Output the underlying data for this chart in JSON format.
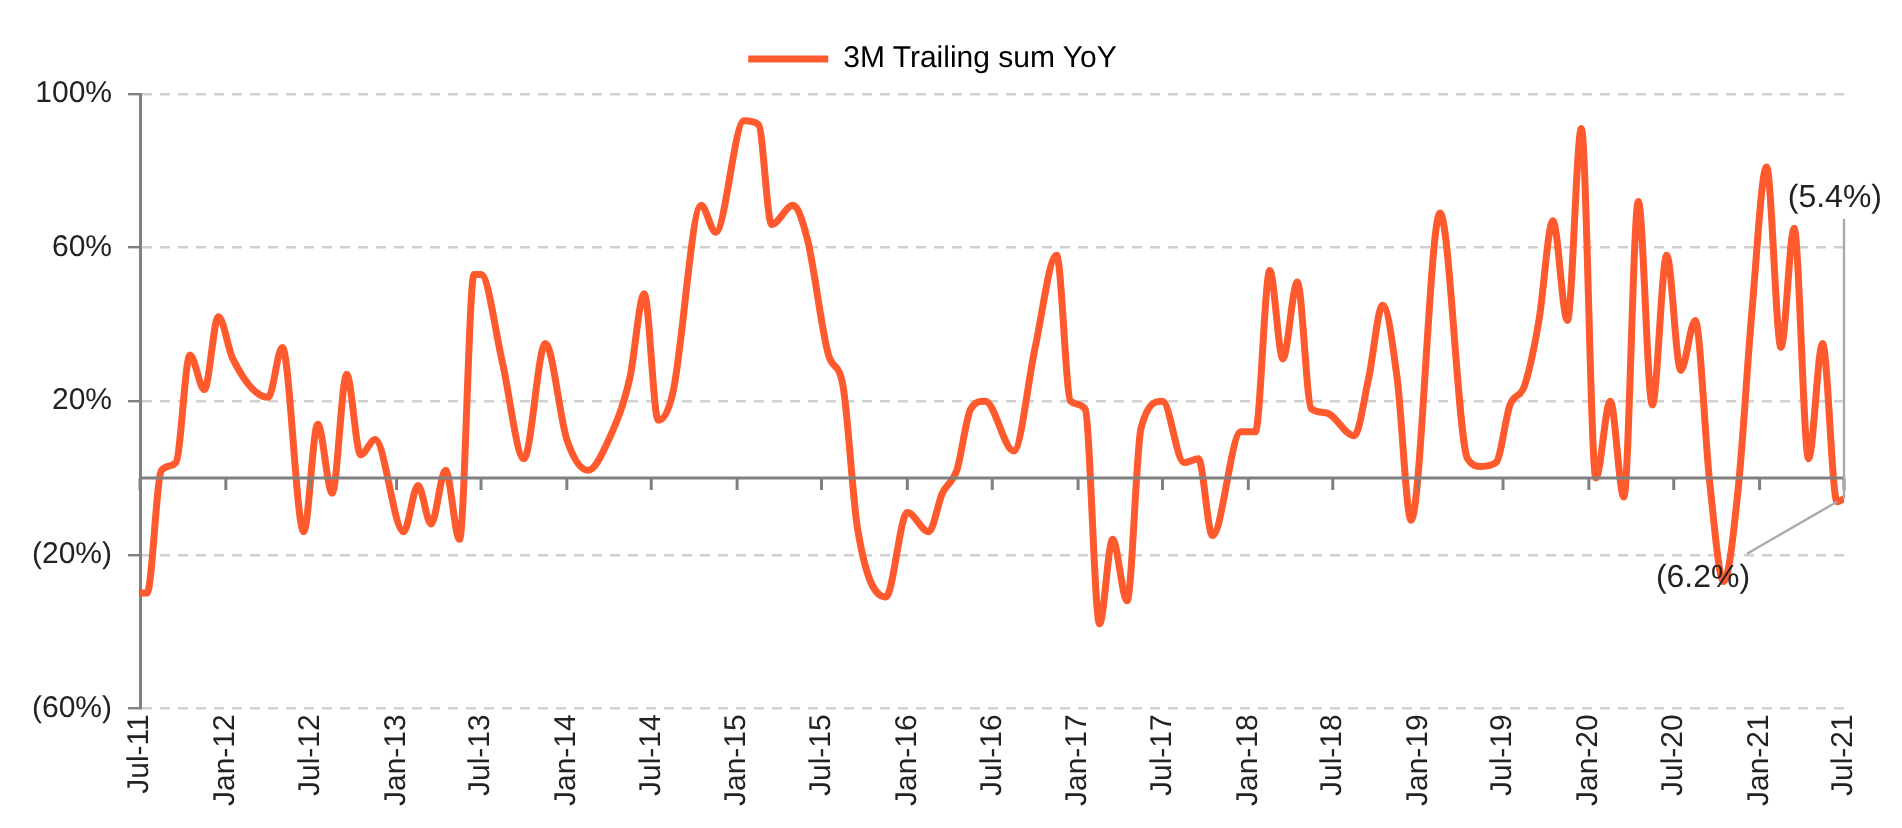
{
  "chart_data": {
    "type": "line",
    "legend": "top",
    "grid": "y",
    "marker": "none",
    "line_style": "solid",
    "x": [
      "2011-07",
      "2011-07-16",
      "2011-08-16",
      "2011-09-16",
      "2011-10-16",
      "2011-11-16",
      "2011-12-16",
      "2012-01-16",
      "2012-04",
      "2012-05",
      "2012-06-16",
      "2012-07-16",
      "2012-08-16",
      "2012-09-16",
      "2012-10-16",
      "2012-11-16",
      "2013-01-16",
      "2013-02-16",
      "2013-03-16",
      "2013-04-16",
      "2013-05-16",
      "2013-06-16",
      "2013-07",
      "2013-08-16",
      "2013-10",
      "2013-11-16",
      "2014-01",
      "2014-02-16",
      "2014-04",
      "2014-05-16",
      "2014-06-16",
      "2014-07-16",
      "2014-08-16",
      "2014-10-16",
      "2014-11-16",
      "2015-01-16",
      "2015-02-16",
      "2015-03-16",
      "2015-05",
      "2015-06",
      "2015-07-16",
      "2015-08-16",
      "2015-09-16",
      "2015-11-16",
      "2016-01",
      "2016-02-16",
      "2016-03-16",
      "2016-04-16",
      "2016-05-16",
      "2016-06-16",
      "2016-08-16",
      "2016-10",
      "2016-11-16",
      "2016-12-16",
      "2017-01-16",
      "2017-02-16",
      "2017-03-16",
      "2017-04-16",
      "2017-05-16",
      "2017-07",
      "2017-08-16",
      "2017-09-16",
      "2017-10-16",
      "2017-12-16",
      "2018-01-16",
      "2018-02-16",
      "2018-03-16",
      "2018-04-16",
      "2018-05-16",
      "2018-06-16",
      "2018-08-16",
      "2018-09-16",
      "2018-10-16",
      "2018-11-16",
      "2018-12-16",
      "2019-02-16",
      "2019-04-16",
      "2019-05-16",
      "2019-06-16",
      "2019-07-16",
      "2019-08-16",
      "2019-09-16",
      "2019-10-16",
      "2019-11-16",
      "2019-12-16",
      "2020-01-16",
      "2020-02-16",
      "2020-03-16",
      "2020-04-16",
      "2020-05-16",
      "2020-06-16",
      "2020-07-16",
      "2020-08-16",
      "2020-09-16",
      "2020-10-16",
      "2020-11-16",
      "2020-12-16",
      "2021-01-16",
      "2021-02-16",
      "2021-03-16",
      "2021-04-16",
      "2021-05-16",
      "2021-06-16",
      "2021-07"
    ],
    "series": [
      {
        "name": "3M Trailing sum YoY",
        "color": "#ff5a2d",
        "values": [
          -30,
          -30,
          2,
          4,
          32,
          23,
          42,
          31,
          21,
          34,
          -14,
          14,
          -4,
          27,
          6,
          10,
          -14,
          -2,
          -12,
          2,
          -16,
          53,
          53,
          30,
          5,
          35,
          10,
          2,
          10,
          26,
          48,
          15,
          22,
          71,
          64,
          93,
          92,
          66,
          71,
          62,
          32,
          24,
          -13,
          -31,
          -9,
          -14,
          -4,
          2,
          18,
          20,
          7,
          34,
          58,
          20,
          18,
          -38,
          -16,
          -32,
          13,
          20,
          4,
          5,
          -15,
          12,
          12,
          54,
          31,
          51,
          18,
          17,
          11,
          26,
          45,
          26,
          -11,
          69,
          5,
          3,
          4,
          19,
          24,
          41,
          67,
          41,
          91,
          0,
          20,
          -5,
          72,
          19,
          58,
          28,
          41,
          -1,
          -27,
          -3,
          44,
          81,
          34,
          65,
          5,
          35,
          -6.2,
          -5.4
        ]
      }
    ],
    "xlim": [
      "2011-07",
      "2021-07"
    ],
    "xticks": [
      {
        "value": "2011-07",
        "label": "Jul-11"
      },
      {
        "value": "2012-01",
        "label": "Jan-12"
      },
      {
        "value": "2012-07",
        "label": "Jul-12"
      },
      {
        "value": "2013-01",
        "label": "Jan-13"
      },
      {
        "value": "2013-07",
        "label": "Jul-13"
      },
      {
        "value": "2014-01",
        "label": "Jan-14"
      },
      {
        "value": "2014-07",
        "label": "Jul-14"
      },
      {
        "value": "2015-01",
        "label": "Jan-15"
      },
      {
        "value": "2015-07",
        "label": "Jul-15"
      },
      {
        "value": "2016-01",
        "label": "Jan-16"
      },
      {
        "value": "2016-07",
        "label": "Jul-16"
      },
      {
        "value": "2017-01",
        "label": "Jan-17"
      },
      {
        "value": "2017-07",
        "label": "Jul-17"
      },
      {
        "value": "2018-01",
        "label": "Jan-18"
      },
      {
        "value": "2018-07",
        "label": "Jul-18"
      },
      {
        "value": "2019-01",
        "label": "Jan-19"
      },
      {
        "value": "2019-07",
        "label": "Jul-19"
      },
      {
        "value": "2020-01",
        "label": "Jan-20"
      },
      {
        "value": "2020-07",
        "label": "Jul-20"
      },
      {
        "value": "2021-01",
        "label": "Jan-21"
      },
      {
        "value": "2021-07",
        "label": "Jul-21"
      }
    ],
    "ylim": [
      -60,
      100
    ],
    "yticks": [
      {
        "value": -60,
        "label": "(60%)"
      },
      {
        "value": -20,
        "label": "(20%)"
      },
      {
        "value": 20,
        "label": "20%"
      },
      {
        "value": 60,
        "label": "60%"
      },
      {
        "value": 100,
        "label": "100%"
      }
    ],
    "ref_lines": [
      {
        "axis": "y",
        "value": 0,
        "color": "#808080"
      }
    ],
    "annotations": [
      {
        "text": "(6.2%)",
        "x": "2021-06-16",
        "y": -6.2
      },
      {
        "text": "(5.4%)",
        "x": "2021-07",
        "y": -5.4
      }
    ]
  }
}
